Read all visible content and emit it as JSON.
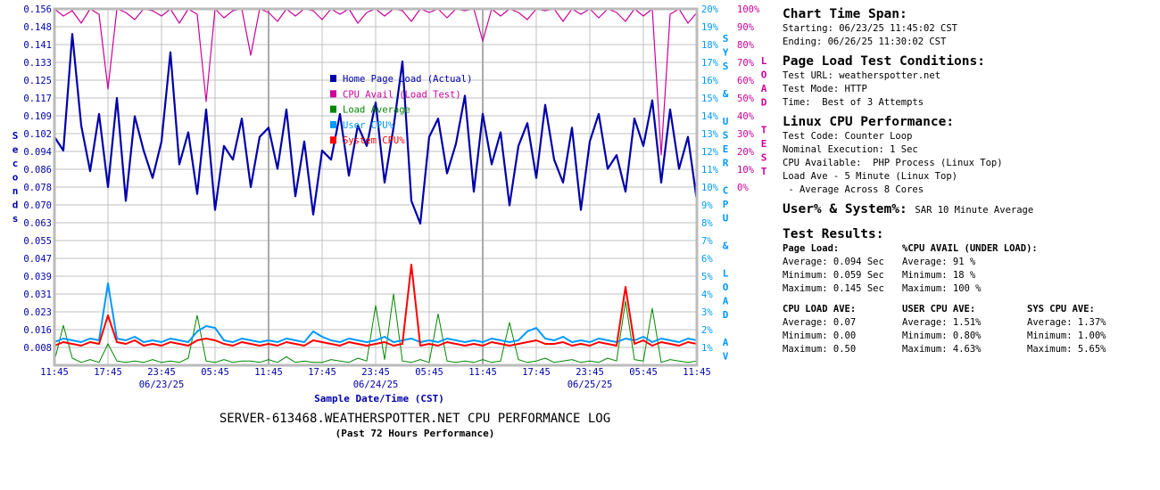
{
  "chart_data": {
    "type": "line",
    "title": "SERVER-613468.WEATHERSPOTTER.NET CPU PERFORMANCE LOG",
    "subtitle": "(Past 72 Hours Performance)",
    "xlabel": "Sample Date/Time (CST)",
    "ylabel_left": "Seconds",
    "ylabel_right1": "SYS & USER CPU & LOAD AV",
    "ylabel_right2": "LOAD TEST",
    "x_tick_labels": [
      "11:45",
      "17:45",
      "23:45",
      "05:45",
      "11:45",
      "17:45",
      "23:45",
      "05:45",
      "11:45",
      "17:45",
      "23:45",
      "05:45",
      "11:45"
    ],
    "date_labels": [
      {
        "label": "06/23/25",
        "hour": 12
      },
      {
        "label": "06/24/25",
        "hour": 36
      },
      {
        "label": "06/25/25",
        "hour": 60
      }
    ],
    "x_range_hours": [
      0,
      72
    ],
    "left_ticks": [
      "0.156",
      "0.148",
      "0.141",
      "0.133",
      "0.125",
      "0.117",
      "0.109",
      "0.102",
      "0.094",
      "0.086",
      "0.078",
      "0.070",
      "0.063",
      "0.055",
      "0.047",
      "0.039",
      "0.031",
      "0.023",
      "0.016",
      "0.008"
    ],
    "left_range": [
      0,
      0.156
    ],
    "right1_ticks": [
      "20%",
      "19%",
      "18%",
      "17%",
      "16%",
      "15%",
      "14%",
      "13%",
      "12%",
      "11%",
      "10%",
      "9%",
      "8%",
      "7%",
      "6%",
      "5%",
      "4%",
      "3%",
      "2%",
      "1%"
    ],
    "right1_range": [
      0,
      20
    ],
    "right2_ticks": [
      "100%",
      "90%",
      "80%",
      "70%",
      "60%",
      "50%",
      "40%",
      "30%",
      "20%",
      "10%",
      "0%"
    ],
    "right2_range": [
      0,
      100
    ],
    "grid": true,
    "legend_position": "top-center",
    "colors": {
      "page": "#0000aa",
      "avail": "#cc0099",
      "load": "#008800",
      "user": "#0099ff",
      "sys": "#ff0000",
      "grid": "#c0c0c0",
      "axis": "#0000aa",
      "right1": "#0099ff",
      "right2": "#cc0099"
    },
    "series": [
      {
        "key": "page",
        "name": "Home Page Load (Actual)",
        "axis": "left",
        "values": [
          0.1,
          0.094,
          0.145,
          0.105,
          0.085,
          0.11,
          0.078,
          0.117,
          0.072,
          0.109,
          0.094,
          0.082,
          0.098,
          0.137,
          0.088,
          0.102,
          0.075,
          0.112,
          0.068,
          0.096,
          0.09,
          0.108,
          0.078,
          0.1,
          0.104,
          0.086,
          0.112,
          0.074,
          0.098,
          0.066,
          0.094,
          0.09,
          0.11,
          0.083,
          0.105,
          0.096,
          0.115,
          0.08,
          0.104,
          0.133,
          0.072,
          0.062,
          0.1,
          0.108,
          0.084,
          0.097,
          0.118,
          0.076,
          0.11,
          0.088,
          0.102,
          0.07,
          0.096,
          0.106,
          0.082,
          0.114,
          0.09,
          0.08,
          0.104,
          0.068,
          0.098,
          0.11,
          0.086,
          0.092,
          0.076,
          0.108,
          0.096,
          0.116,
          0.08,
          0.112,
          0.086,
          0.1,
          0.072
        ]
      },
      {
        "key": "avail",
        "name": "CPU Avail (Load Test)",
        "axis": "right2",
        "values": [
          100,
          96,
          99,
          92,
          100,
          97,
          55,
          100,
          98,
          94,
          100,
          99,
          96,
          100,
          92,
          100,
          97,
          48,
          100,
          95,
          99,
          100,
          74,
          100,
          98,
          93,
          100,
          96,
          100,
          99,
          94,
          100,
          97,
          100,
          92,
          98,
          100,
          96,
          100,
          99,
          93,
          100,
          98,
          100,
          95,
          100,
          99,
          100,
          82,
          100,
          96,
          100,
          98,
          94,
          100,
          99,
          100,
          93,
          100,
          97,
          100,
          95,
          100,
          98,
          93,
          100,
          96,
          100,
          18,
          97,
          100,
          92,
          98
        ]
      },
      {
        "key": "load",
        "name": "Load Average",
        "axis": "right1",
        "scale": 8,
        "values": [
          0.03,
          0.28,
          0.05,
          0.02,
          0.04,
          0.02,
          0.15,
          0.03,
          0.02,
          0.03,
          0.02,
          0.04,
          0.02,
          0.03,
          0.02,
          0.05,
          0.35,
          0.03,
          0.02,
          0.04,
          0.02,
          0.03,
          0.03,
          0.02,
          0.04,
          0.02,
          0.06,
          0.02,
          0.03,
          0.02,
          0.02,
          0.04,
          0.03,
          0.02,
          0.05,
          0.03,
          0.42,
          0.04,
          0.5,
          0.03,
          0.02,
          0.04,
          0.02,
          0.36,
          0.03,
          0.02,
          0.03,
          0.02,
          0.04,
          0.02,
          0.03,
          0.3,
          0.04,
          0.02,
          0.03,
          0.05,
          0.02,
          0.03,
          0.04,
          0.02,
          0.03,
          0.02,
          0.05,
          0.03,
          0.45,
          0.04,
          0.03,
          0.4,
          0.02,
          0.04,
          0.03,
          0.02,
          0.03
        ]
      },
      {
        "key": "user",
        "name": "User CPU%",
        "axis": "right1",
        "values": [
          1.3,
          1.5,
          1.4,
          1.3,
          1.5,
          1.4,
          4.6,
          1.5,
          1.4,
          1.6,
          1.3,
          1.4,
          1.3,
          1.5,
          1.4,
          1.3,
          1.9,
          2.2,
          2.1,
          1.4,
          1.3,
          1.5,
          1.4,
          1.3,
          1.4,
          1.3,
          1.5,
          1.4,
          1.3,
          1.9,
          1.6,
          1.4,
          1.3,
          1.5,
          1.4,
          1.3,
          1.4,
          1.6,
          1.3,
          1.4,
          1.5,
          1.3,
          1.4,
          1.3,
          1.5,
          1.4,
          1.3,
          1.4,
          1.3,
          1.5,
          1.4,
          1.3,
          1.4,
          1.9,
          2.1,
          1.5,
          1.4,
          1.6,
          1.3,
          1.4,
          1.3,
          1.5,
          1.4,
          1.3,
          1.5,
          1.4,
          1.6,
          1.3,
          1.5,
          1.4,
          1.3,
          1.5,
          1.4
        ]
      },
      {
        "key": "sys",
        "name": "System CPU%",
        "axis": "right1",
        "values": [
          1.1,
          1.3,
          1.2,
          1.1,
          1.3,
          1.2,
          2.8,
          1.3,
          1.2,
          1.4,
          1.1,
          1.2,
          1.1,
          1.3,
          1.2,
          1.1,
          1.4,
          1.5,
          1.4,
          1.2,
          1.1,
          1.3,
          1.2,
          1.1,
          1.2,
          1.1,
          1.3,
          1.2,
          1.1,
          1.4,
          1.3,
          1.2,
          1.1,
          1.3,
          1.2,
          1.1,
          1.2,
          1.3,
          1.1,
          1.2,
          5.65,
          1.1,
          1.2,
          1.1,
          1.3,
          1.2,
          1.1,
          1.2,
          1.1,
          1.3,
          1.2,
          1.1,
          1.2,
          1.3,
          1.4,
          1.2,
          1.2,
          1.3,
          1.1,
          1.2,
          1.1,
          1.3,
          1.2,
          1.1,
          4.4,
          1.2,
          1.4,
          1.1,
          1.3,
          1.2,
          1.1,
          1.3,
          1.2
        ]
      }
    ]
  },
  "panel": {
    "time_span": {
      "heading": "Chart Time Span:",
      "starting": "Starting: 06/23/25 11:45:02 CST",
      "ending": "Ending: 06/26/25 11:30:02 CST"
    },
    "conditions": {
      "heading": "Page Load Test Conditions:",
      "url": "Test URL: weatherspotter.net",
      "mode": "Test Mode: HTTP",
      "time": "Time:  Best of 3 Attempts"
    },
    "linux": {
      "heading": "Linux CPU Performance:",
      "code": "Test Code: Counter Loop",
      "nominal": "Nominal Execution: 1 Sec",
      "available": "CPU Available:  PHP Process (Linux Top)",
      "load": "Load Ave - 5 Minute (Linux Top)",
      "cores": " - Average Across 8 Cores"
    },
    "usersys": {
      "heading": "User% & System%:",
      "value": "SAR 10 Minute Average"
    },
    "results": {
      "heading": "Test Results:",
      "page_load": {
        "label": "Page Load:",
        "avg": "Average: 0.094 Sec",
        "min": "Minimum: 0.059 Sec",
        "max": "Maximum: 0.145 Sec"
      },
      "cpu_avail": {
        "label": "%CPU AVAIL (UNDER LOAD):",
        "avg": "Average: 91 %",
        "min": "Minimum: 18 %",
        "max": "Maximum: 100 %"
      },
      "load_ave": {
        "label": "CPU LOAD AVE:",
        "avg": "Average: 0.07",
        "min": "Minimum: 0.00",
        "max": "Maximum: 0.50"
      },
      "user_cpu": {
        "label": "USER CPU AVE:",
        "avg": "Average: 1.51%",
        "min": "Minimum: 0.80%",
        "max": "Maximum: 4.63%"
      },
      "sys_cpu": {
        "label": "SYS CPU AVE:",
        "avg": "Average: 1.37%",
        "min": "Minimum: 1.00%",
        "max": "Maximum: 5.65%"
      }
    }
  }
}
